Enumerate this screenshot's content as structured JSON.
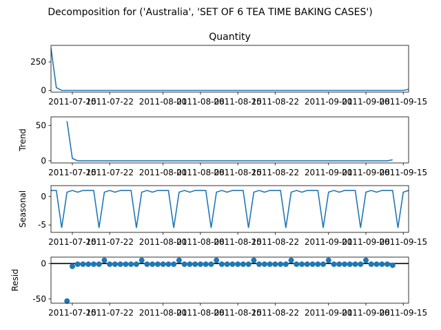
{
  "figure": {
    "suptitle": "Decomposition for ('Australia', 'SET OF 6 TEA TIME BAKING CASES')"
  },
  "colors": {
    "line": "#1f77b4",
    "axis": "#000000",
    "zero_line": "#000000"
  },
  "chart_data": [
    {
      "type": "line",
      "title": "Quantity",
      "ylabel": "",
      "ylim": [
        -15,
        395
      ],
      "yticks": [
        0,
        250
      ],
      "x_start": "2011-07-11",
      "x_end": "2011-09-16",
      "xticks": [
        "2011-07-15",
        "2011-07-22",
        "2011-08-01",
        "2011-08-08",
        "2011-08-15",
        "2011-08-22",
        "2011-09-01",
        "2011-09-08",
        "2011-09-15"
      ],
      "series": [
        {
          "x": [
            "2011-07-11",
            "2011-07-12",
            "2011-07-13",
            "2011-07-14",
            "2011-07-15",
            "2011-07-16",
            "2011-07-17",
            "2011-07-18",
            "2011-07-19",
            "2011-07-20",
            "2011-07-21",
            "2011-07-22",
            "2011-07-23",
            "2011-07-24",
            "2011-07-25",
            "2011-07-26",
            "2011-07-27",
            "2011-07-28",
            "2011-07-29",
            "2011-07-30",
            "2011-07-31",
            "2011-08-01",
            "2011-08-02",
            "2011-08-03",
            "2011-08-04",
            "2011-08-05",
            "2011-08-06",
            "2011-08-07",
            "2011-08-08",
            "2011-08-09",
            "2011-08-10",
            "2011-08-11",
            "2011-08-12",
            "2011-08-13",
            "2011-08-14",
            "2011-08-15",
            "2011-08-16",
            "2011-08-17",
            "2011-08-18",
            "2011-08-19",
            "2011-08-20",
            "2011-08-21",
            "2011-08-22",
            "2011-08-23",
            "2011-08-24",
            "2011-08-25",
            "2011-08-26",
            "2011-08-27",
            "2011-08-28",
            "2011-08-29",
            "2011-08-30",
            "2011-08-31",
            "2011-09-01",
            "2011-09-02",
            "2011-09-03",
            "2011-09-04",
            "2011-09-05",
            "2011-09-06",
            "2011-09-07",
            "2011-09-08",
            "2011-09-09",
            "2011-09-10",
            "2011-09-11",
            "2011-09-12",
            "2011-09-13",
            "2011-09-14",
            "2011-09-15",
            "2011-09-16"
          ],
          "values": [
            370,
            24,
            0,
            0,
            0,
            0,
            0,
            0,
            0,
            0,
            0,
            0,
            0,
            0,
            0,
            0,
            0,
            0,
            0,
            0,
            0,
            0,
            0,
            0,
            0,
            0,
            0,
            0,
            0,
            0,
            0,
            0,
            0,
            0,
            0,
            0,
            0,
            0,
            0,
            0,
            0,
            0,
            0,
            0,
            0,
            0,
            0,
            0,
            0,
            0,
            0,
            0,
            0,
            0,
            0,
            0,
            0,
            0,
            0,
            0,
            0,
            0,
            0,
            0,
            0,
            0,
            0,
            10
          ]
        }
      ]
    },
    {
      "type": "line",
      "title": "",
      "ylabel": "Trend",
      "ylim": [
        -3,
        62
      ],
      "yticks": [
        0,
        50
      ],
      "x_start": "2011-07-11",
      "x_end": "2011-09-16",
      "xticks": [
        "2011-07-15",
        "2011-07-22",
        "2011-08-01",
        "2011-08-08",
        "2011-08-15",
        "2011-08-22",
        "2011-09-01",
        "2011-09-08",
        "2011-09-15"
      ],
      "series": [
        {
          "x": [
            "2011-07-14",
            "2011-07-15",
            "2011-07-16",
            "2011-07-17",
            "2011-07-18",
            "2011-07-19",
            "2011-07-20",
            "2011-07-21",
            "2011-07-22",
            "2011-07-23",
            "2011-07-24",
            "2011-07-25",
            "2011-07-26",
            "2011-07-27",
            "2011-07-28",
            "2011-07-29",
            "2011-07-30",
            "2011-07-31",
            "2011-08-01",
            "2011-08-02",
            "2011-08-03",
            "2011-08-04",
            "2011-08-05",
            "2011-08-06",
            "2011-08-07",
            "2011-08-08",
            "2011-08-09",
            "2011-08-10",
            "2011-08-11",
            "2011-08-12",
            "2011-08-13",
            "2011-08-14",
            "2011-08-15",
            "2011-08-16",
            "2011-08-17",
            "2011-08-18",
            "2011-08-19",
            "2011-08-20",
            "2011-08-21",
            "2011-08-22",
            "2011-08-23",
            "2011-08-24",
            "2011-08-25",
            "2011-08-26",
            "2011-08-27",
            "2011-08-28",
            "2011-08-29",
            "2011-08-30",
            "2011-08-31",
            "2011-09-01",
            "2011-09-02",
            "2011-09-03",
            "2011-09-04",
            "2011-09-05",
            "2011-09-06",
            "2011-09-07",
            "2011-09-08",
            "2011-09-09",
            "2011-09-10",
            "2011-09-11",
            "2011-09-12",
            "2011-09-13"
          ],
          "values": [
            56,
            3.4,
            0,
            0,
            0,
            0,
            0,
            0,
            0,
            0,
            0,
            0,
            0,
            0,
            0,
            0,
            0,
            0,
            0,
            0,
            0,
            0,
            0,
            0,
            0,
            0,
            0,
            0,
            0,
            0,
            0,
            0,
            0,
            0,
            0,
            0,
            0,
            0,
            0,
            0,
            0,
            0,
            0,
            0,
            0,
            0,
            0,
            0,
            0,
            0,
            0,
            0,
            0,
            0,
            0,
            0,
            0,
            0,
            0,
            0,
            0,
            1.4
          ]
        }
      ]
    },
    {
      "type": "line",
      "title": "",
      "ylabel": "Seasonal",
      "ylim": [
        -6.3,
        1.9
      ],
      "yticks": [
        -5,
        0
      ],
      "x_start": "2011-07-11",
      "x_end": "2011-09-16",
      "xticks": [
        "2011-07-15",
        "2011-07-22",
        "2011-08-01",
        "2011-08-08",
        "2011-08-15",
        "2011-08-22",
        "2011-09-01",
        "2011-09-08",
        "2011-09-15"
      ],
      "series": [
        {
          "start": "2011-07-11",
          "period_pattern": [
            1.05,
            1.05,
            -5.5,
            0.75,
            1.05,
            0.75,
            1.05
          ],
          "note_weekly": true,
          "values": [
            1.05,
            1.05,
            -5.5,
            0.75,
            1.05,
            0.75,
            1.05,
            1.05,
            1.05,
            -5.5,
            0.75,
            1.05,
            0.75,
            1.05,
            1.05,
            1.05,
            -5.5,
            0.75,
            1.05,
            0.75,
            1.05,
            1.05,
            1.05,
            -5.5,
            0.75,
            1.05,
            0.75,
            1.05,
            1.05,
            1.05,
            -5.5,
            0.75,
            1.05,
            0.75,
            1.05,
            1.05,
            1.05,
            -5.5,
            0.75,
            1.05,
            0.75,
            1.05,
            1.05,
            1.05,
            -5.5,
            0.75,
            1.05,
            0.75,
            1.05,
            1.05,
            1.05,
            -5.5,
            0.75,
            1.05,
            0.75,
            1.05,
            1.05,
            1.05,
            -5.5,
            0.75,
            1.05,
            0.75,
            1.05,
            1.05,
            1.05,
            -5.5,
            0.75,
            1.05
          ]
        }
      ]
    },
    {
      "type": "scatter",
      "title": "",
      "ylabel": "Resid",
      "ylim": [
        -56,
        9
      ],
      "yticks": [
        -50,
        0
      ],
      "zero_line": true,
      "x_start": "2011-07-11",
      "x_end": "2011-09-16",
      "xticks": [
        "2011-07-15",
        "2011-07-22",
        "2011-08-01",
        "2011-08-08",
        "2011-08-15",
        "2011-08-22",
        "2011-09-01",
        "2011-09-08",
        "2011-09-15"
      ],
      "series": [
        {
          "x": [
            "2011-07-14",
            "2011-07-15",
            "2011-07-16",
            "2011-07-17",
            "2011-07-18",
            "2011-07-19",
            "2011-07-20",
            "2011-07-21",
            "2011-07-22",
            "2011-07-23",
            "2011-07-24",
            "2011-07-25",
            "2011-07-26",
            "2011-07-27",
            "2011-07-28",
            "2011-07-29",
            "2011-07-30",
            "2011-07-31",
            "2011-08-01",
            "2011-08-02",
            "2011-08-03",
            "2011-08-04",
            "2011-08-05",
            "2011-08-06",
            "2011-08-07",
            "2011-08-08",
            "2011-08-09",
            "2011-08-10",
            "2011-08-11",
            "2011-08-12",
            "2011-08-13",
            "2011-08-14",
            "2011-08-15",
            "2011-08-16",
            "2011-08-17",
            "2011-08-18",
            "2011-08-19",
            "2011-08-20",
            "2011-08-21",
            "2011-08-22",
            "2011-08-23",
            "2011-08-24",
            "2011-08-25",
            "2011-08-26",
            "2011-08-27",
            "2011-08-28",
            "2011-08-29",
            "2011-08-30",
            "2011-08-31",
            "2011-09-01",
            "2011-09-02",
            "2011-09-03",
            "2011-09-04",
            "2011-09-05",
            "2011-09-06",
            "2011-09-07",
            "2011-09-08",
            "2011-09-09",
            "2011-09-10",
            "2011-09-11",
            "2011-09-12",
            "2011-09-13"
          ],
          "values": [
            -53,
            -4,
            -1,
            -1,
            -1,
            -1,
            -1,
            4.5,
            -1,
            -1,
            -1,
            -1,
            -1,
            -1,
            4.5,
            -1,
            -1,
            -1,
            -1,
            -1,
            -1,
            4.5,
            -1,
            -1,
            -1,
            -1,
            -1,
            -1,
            4.5,
            -1,
            -1,
            -1,
            -1,
            -1,
            -1,
            4.5,
            -1,
            -1,
            -1,
            -1,
            -1,
            -1,
            4.5,
            -1,
            -1,
            -1,
            -1,
            -1,
            -1,
            4.5,
            -1,
            -1,
            -1,
            -1,
            -1,
            -1,
            4.5,
            -1,
            -1,
            -1,
            -1,
            -2.5
          ]
        }
      ]
    }
  ]
}
